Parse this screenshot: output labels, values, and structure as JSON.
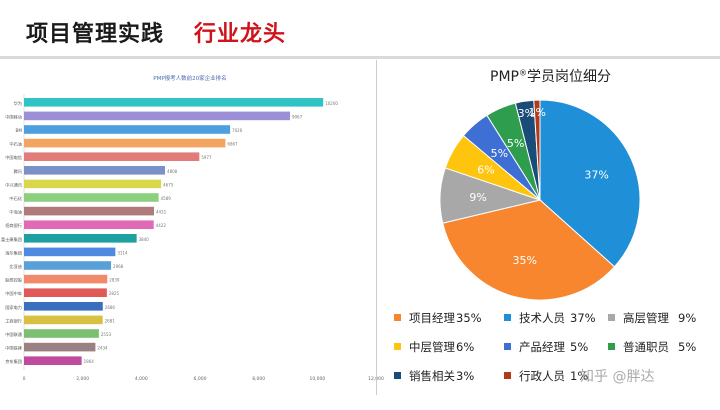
{
  "header": {
    "title_main": "项目管理实践",
    "title_accent": "行业龙头"
  },
  "watermark": "知乎 @胖达",
  "colors": {
    "title_accent": "#d0121b",
    "divider": "#d9d9d9"
  },
  "chart_data": [
    {
      "type": "bar",
      "orientation": "horizontal",
      "title": "PMP报考人数前20家企业排名",
      "categories": [
        "华为",
        "中国移动",
        "BM",
        "中石油",
        "中国电信",
        "腾讯",
        "中兴通讯",
        "中石化",
        "中海油",
        "招商银行",
        "富士康集团",
        "海尔集团",
        "比亚迪",
        "联想控股",
        "中国中车",
        "国家电力",
        "工商银行",
        "中国联通",
        "中国铁建",
        "京东集团"
      ],
      "values": [
        10200,
        9067,
        7026,
        6867,
        5977,
        4808,
        4675,
        4589,
        4431,
        4422,
        3840,
        3114,
        2968,
        2839,
        2825,
        2686,
        2681,
        2553,
        2434,
        1964
      ],
      "value_labels": [
        "10200",
        "9067",
        "7026",
        "6867",
        "5977",
        "4808",
        "4675",
        "4589",
        "4431",
        "4422",
        "3840",
        "3114",
        "2968",
        "2839",
        "2825",
        "2686",
        "2681",
        "2553",
        "2434",
        "1964"
      ],
      "bar_colors": [
        "#2fc4c4",
        "#9b8fd6",
        "#4d9fe0",
        "#f4a460",
        "#e37b7b",
        "#7b8fc9",
        "#d8d84a",
        "#8ccf7e",
        "#b07a7a",
        "#e06ab8",
        "#1fa0a0",
        "#4f8ae0",
        "#5aa0d8",
        "#f08a6a",
        "#e05a5a",
        "#3a6fc0",
        "#d8c040",
        "#7ac070",
        "#9a8080",
        "#c04aa0"
      ],
      "xlim": [
        0,
        12000
      ],
      "x_ticks": [
        "0",
        "2,000",
        "4,000",
        "6,000",
        "8,000",
        "10,000",
        "12,000"
      ],
      "x_tick_values": [
        0,
        2000,
        4000,
        6000,
        8000,
        10000,
        12000
      ]
    },
    {
      "type": "pie",
      "title_text": "PMP",
      "title_sup": "®",
      "title_rest": "学员岗位细分",
      "start_angle_deg": 0,
      "direction": "clockwise",
      "slices": [
        {
          "name": "技术人员",
          "value": 37,
          "label": "37%",
          "color": "#1f8fd8"
        },
        {
          "name": "项目经理",
          "value": 35,
          "label": "35%",
          "color": "#f7862f"
        },
        {
          "name": "高层管理",
          "value": 9,
          "label": "9%",
          "color": "#a8a8a8"
        },
        {
          "name": "中层管理",
          "value": 6,
          "label": "6%",
          "color": "#ffc40e"
        },
        {
          "name": "产品经理",
          "value": 5,
          "label": "5%",
          "color": "#3d6fd4"
        },
        {
          "name": "普通职员",
          "value": 5,
          "label": "5%",
          "color": "#2e9e4e"
        },
        {
          "name": "销售相关",
          "value": 3,
          "label": "3%",
          "color": "#1a4c7a"
        },
        {
          "name": "行政人员",
          "value": 1,
          "label": "1%",
          "color": "#b03a1a"
        }
      ],
      "legend": [
        {
          "name": "项目经理",
          "value": "35%",
          "color": "#f7862f"
        },
        {
          "name": "技术人员",
          "value": "37%",
          "color": "#1f8fd8"
        },
        {
          "name": "高层管理",
          "value": "9%",
          "color": "#a8a8a8"
        },
        {
          "name": "中层管理",
          "value": "6%",
          "color": "#ffc40e"
        },
        {
          "name": "产品经理",
          "value": "5%",
          "color": "#3d6fd4"
        },
        {
          "name": "普通职员",
          "value": "5%",
          "color": "#2e9e4e"
        },
        {
          "name": "销售相关",
          "value": "3%",
          "color": "#1a4c7a"
        },
        {
          "name": "行政人员",
          "value": "1%",
          "color": "#b03a1a"
        }
      ]
    }
  ]
}
